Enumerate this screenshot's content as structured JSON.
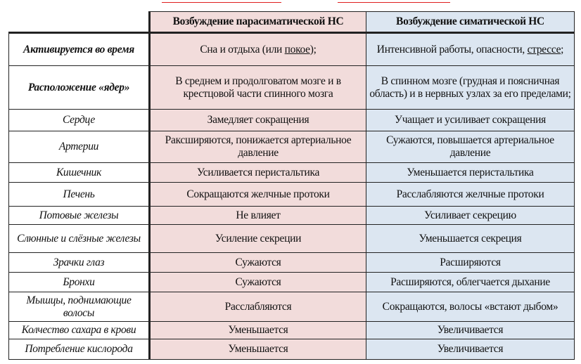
{
  "colors": {
    "parasympathetic": "#f2dcdb",
    "sympathetic": "#dce6f1",
    "top_text": "#e02020"
  },
  "header": {
    "col2": "Возбуждение  парасиматической НС",
    "col3": "Возбуждение  симатической НС"
  },
  "rows": [
    {
      "label": "Активируется во время",
      "para_pre": "Сна и отдыха (или ",
      "para_u": "покое",
      "para_post": ");",
      "symp_pre": "Интенсивной работы, опасности, ",
      "symp_u": "стрессе",
      "symp_post": ";"
    },
    {
      "label": "Расположение «ядер»",
      "para": "В среднем и продолговатом мозге и в крестцовой части спинного мозга",
      "symp": "В спинном мозге (грудная и поясничная область) и в нервных узлах за его пределами;"
    },
    {
      "label": "Сердце",
      "para": "Замедляет сокращения",
      "symp": "Учащает и усиливает сокращения"
    },
    {
      "label": "Артерии",
      "para": "Раксширяются, понижается артериальное давление",
      "symp": "Сужаются, повышается артериальное давление"
    },
    {
      "label": "Кишечник",
      "para": "Усиливается перистальтика",
      "symp": "Уменьшается перистальтика"
    },
    {
      "label": "Печень",
      "para": "Сокращаются желчные протоки",
      "symp": "Расслабляются желчные протоки"
    },
    {
      "label": "Потовые железы",
      "para": "Не влияет",
      "symp": "Усиливает секрецию"
    },
    {
      "label": "Слюнные и слёзные железы",
      "para": "Усиление секреции",
      "symp": "Уменьшается секреция"
    },
    {
      "label": "Зрачки глаз",
      "para": "Сужаются",
      "symp": "Расширяются"
    },
    {
      "label": "Бронхи",
      "para": "Сужаются",
      "symp": "Расширяются, облегчается дыхание"
    },
    {
      "label": "Мышцы, поднимающие волосы",
      "para": "Расслабляются",
      "symp": "Сокращаются, волосы «встают дыбом»"
    },
    {
      "label": "Колчество сахара в крови",
      "para": "Уменьшается",
      "symp": "Увеличивается"
    },
    {
      "label": "Потребление кислорода",
      "para": "Уменьшается",
      "symp": "Увеличивается"
    }
  ]
}
